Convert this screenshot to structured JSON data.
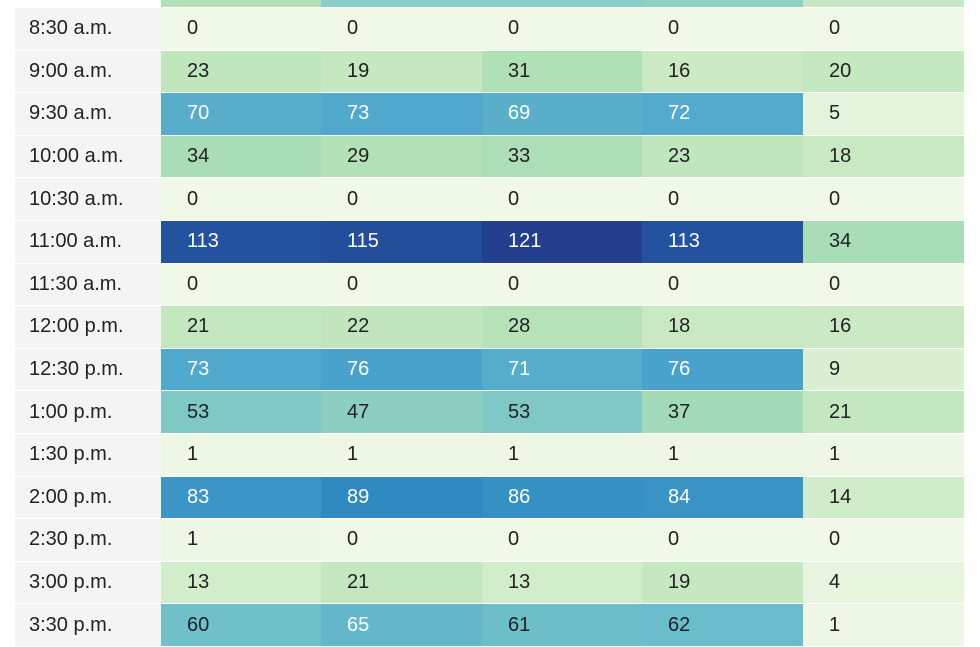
{
  "chart_data": {
    "type": "heatmap",
    "rows": [
      "8:30 a.m.",
      "9:00 a.m.",
      "9:30 a.m.",
      "10:00 a.m.",
      "10:30 a.m.",
      "11:00 a.m.",
      "11:30 a.m.",
      "12:00 p.m.",
      "12:30 p.m.",
      "1:00 p.m.",
      "1:30 p.m.",
      "2:00 p.m.",
      "2:30 p.m.",
      "3:00 p.m.",
      "3:30 p.m."
    ],
    "values": [
      [
        0,
        0,
        0,
        0,
        0
      ],
      [
        23,
        19,
        31,
        16,
        20
      ],
      [
        70,
        73,
        69,
        72,
        5
      ],
      [
        34,
        29,
        33,
        23,
        18
      ],
      [
        0,
        0,
        0,
        0,
        0
      ],
      [
        113,
        115,
        121,
        113,
        34
      ],
      [
        0,
        0,
        0,
        0,
        0
      ],
      [
        21,
        22,
        28,
        18,
        16
      ],
      [
        73,
        76,
        71,
        76,
        9
      ],
      [
        53,
        47,
        53,
        37,
        21
      ],
      [
        1,
        1,
        1,
        1,
        1
      ],
      [
        83,
        89,
        86,
        84,
        14
      ],
      [
        1,
        0,
        0,
        0,
        0
      ],
      [
        13,
        21,
        13,
        19,
        4
      ],
      [
        60,
        65,
        61,
        62,
        1
      ]
    ],
    "color_scale": [
      "#f0f8e8",
      "#cdebc5",
      "#b2e1b6",
      "#8fd1c0",
      "#6fbfca",
      "#4aa3cc",
      "#2c87c0",
      "#2165ab",
      "#253f8f"
    ],
    "row_label_background": "#f4f4f4",
    "previous_row_colors": [
      "#b3e0b4",
      "#88ceca",
      "#88ceca",
      "#8fd2bf",
      "#c6e8c4"
    ]
  }
}
